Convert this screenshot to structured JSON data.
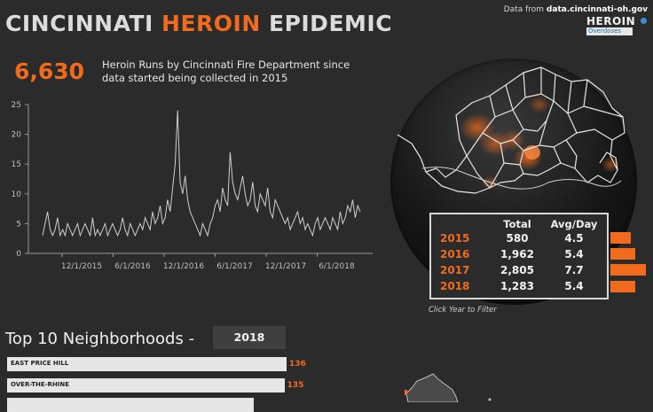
{
  "header": {
    "title_part1": "CINCINNATI ",
    "title_accent": "HEROIN",
    "title_part2": " EPIDEMIC",
    "source_prefix": "Data from ",
    "source_site": "data.cincinnati-oh.gov",
    "logo_top": "HEROIN",
    "logo_sub": "Overdoses"
  },
  "summary": {
    "total_runs": "6,630",
    "description": "Heroin Runs by Cincinnati Fire Department since data started being collected in 2015"
  },
  "chart_data": {
    "type": "line",
    "title": "",
    "xlabel": "",
    "ylabel": "",
    "ylim": [
      0,
      25
    ],
    "yticks": [
      0,
      5,
      10,
      15,
      20,
      25
    ],
    "xtick_labels": [
      "12/1/2015",
      "6/1/2016",
      "12/1/2016",
      "6/1/2017",
      "12/1/2017",
      "6/1/2018"
    ],
    "x_range_months": [
      "2015-08",
      "2018-08"
    ],
    "series": [
      {
        "name": "",
        "color": "#cccccc",
        "values": [
          3,
          5,
          7,
          4,
          3,
          4,
          6,
          3,
          4,
          3,
          5,
          4,
          3,
          4,
          5,
          3,
          4,
          5,
          4,
          3,
          6,
          3,
          4,
          3,
          4,
          5,
          3,
          4,
          5,
          4,
          3,
          4,
          6,
          4,
          3,
          5,
          4,
          3,
          4,
          5,
          4,
          6,
          5,
          4,
          7,
          5,
          6,
          8,
          5,
          6,
          9,
          7,
          11,
          15,
          24,
          12,
          10,
          13,
          9,
          7,
          6,
          5,
          4,
          3,
          5,
          4,
          3,
          5,
          6,
          8,
          9,
          7,
          11,
          9,
          8,
          17,
          12,
          10,
          9,
          11,
          13,
          10,
          8,
          9,
          12,
          8,
          7,
          10,
          9,
          8,
          11,
          7,
          6,
          9,
          8,
          7,
          6,
          5,
          6,
          4,
          5,
          6,
          7,
          5,
          6,
          4,
          5,
          4,
          3,
          5,
          6,
          4,
          5,
          6,
          5,
          4,
          6,
          5,
          4,
          7,
          5,
          6,
          8,
          7,
          9,
          6,
          8,
          7
        ]
      }
    ]
  },
  "year_table": {
    "headers": {
      "total": "Total",
      "avg": "Avg/Day"
    },
    "rows": [
      {
        "year": "2015",
        "total": "580",
        "avg": "4.5",
        "avg_value": 4.5
      },
      {
        "year": "2016",
        "total": "1,962",
        "avg": "5.4",
        "avg_value": 5.4
      },
      {
        "year": "2017",
        "total": "2,805",
        "avg": "7.7",
        "avg_value": 7.7
      },
      {
        "year": "2018",
        "total": "1,283",
        "avg": "5.4",
        "avg_value": 5.4
      }
    ],
    "hint": "Click Year to Filter"
  },
  "neighborhoods": {
    "title": "Top 10 Neighborhoods  -",
    "selected_year": "2018",
    "max_value": 136,
    "items": [
      {
        "name": "EAST PRICE HILL",
        "value": 136
      },
      {
        "name": "OVER-THE-RHINE",
        "value": 135
      },
      {
        "name": "",
        "value": 120
      }
    ]
  },
  "colors": {
    "accent": "#f26a1b",
    "background": "#2b2b2b",
    "table_border": "#d8d8d8"
  },
  "icons": [
    "heroin-logo-icon",
    "cincinnati-map-icon"
  ]
}
